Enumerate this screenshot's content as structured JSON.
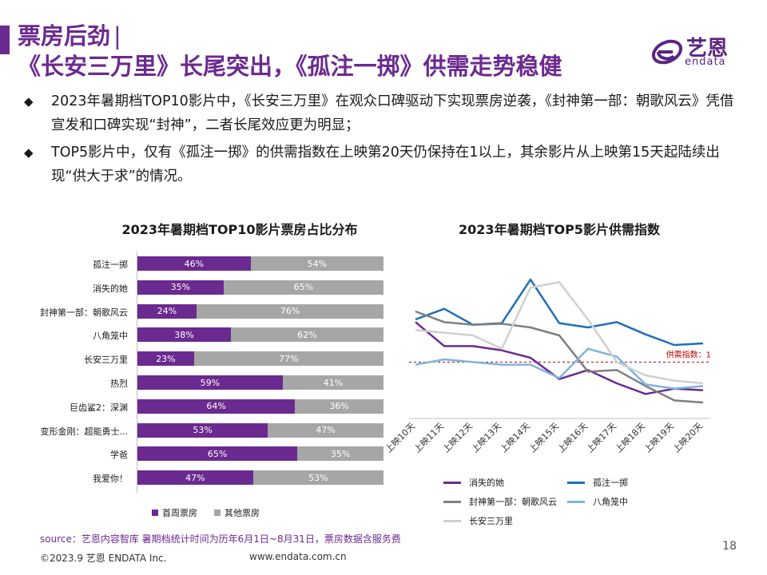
{
  "header": {
    "title_line1": "票房后劲",
    "title_sep": "|",
    "title_line2": "《长安三万里》长尾突出，《孤注一掷》供需走势稳健",
    "logo_cn": "艺恩",
    "logo_en": "endata"
  },
  "bullets": [
    "2023年暑期档TOP10影片中，《长安三万里》在观众口碑驱动下实现票房逆袭，《封神第一部：朝歌风云》凭借宣发和口碑实现“封神”，二者长尾效应更为明显；",
    "TOP5影片中，仅有《孤注一掷》的供需指数在上映第20天仍保持在1以上，其余影片从上映第15天起陆续出现“供大于求”的情况。"
  ],
  "bullet_icon": "◆",
  "chart_data": [
    {
      "type": "bar",
      "title": "2023年暑期档TOP10影片票房占比分布",
      "categories": [
        "孤注一掷",
        "消失的她",
        "封神第一部：朝歌风云",
        "八角笼中",
        "长安三万里",
        "热烈",
        "巨齿鲨2：深渊",
        "变形金刚：超能勇士...",
        "学爸",
        "我爱你！"
      ],
      "series": [
        {
          "name": "首周票房",
          "color": "#6b2a8f",
          "values": [
            46,
            35,
            24,
            38,
            23,
            59,
            64,
            53,
            65,
            47
          ]
        },
        {
          "name": "其他票房",
          "color": "#a6a6a6",
          "values": [
            54,
            65,
            76,
            62,
            77,
            41,
            36,
            47,
            35,
            53
          ]
        }
      ],
      "xlim": [
        0,
        100
      ]
    },
    {
      "type": "line",
      "title": "2023年暑期档TOP5影片供需指数",
      "categories": [
        "上映10天",
        "上映11天",
        "上映12天",
        "上映13天",
        "上映14天",
        "上映15天",
        "上映16天",
        "上映17天",
        "上映18天",
        "上映19天",
        "上映20天"
      ],
      "series": [
        {
          "name": "消失的她",
          "color": "#6b2a8f",
          "values": [
            1.75,
            1.3,
            1.3,
            1.22,
            1.08,
            0.68,
            0.85,
            0.6,
            0.4,
            0.5,
            0.47
          ]
        },
        {
          "name": "孤注一掷",
          "color": "#1f6fb5",
          "values": [
            1.8,
            2.0,
            1.7,
            1.73,
            2.55,
            1.73,
            1.65,
            1.75,
            1.52,
            1.32,
            1.35
          ]
        },
        {
          "name": "封神第一部：朝歌风云",
          "color": "#7f7f7f",
          "values": [
            1.95,
            1.75,
            1.7,
            1.72,
            1.65,
            1.5,
            0.82,
            0.85,
            0.55,
            0.28,
            0.24
          ]
        },
        {
          "name": "八角笼中",
          "color": "#7fb3e0",
          "values": [
            0.95,
            1.05,
            1.0,
            0.95,
            0.95,
            0.7,
            1.25,
            1.1,
            0.58,
            0.5,
            0.55
          ]
        },
        {
          "name": "长安三万里",
          "color": "#cfcfcf",
          "values": [
            1.6,
            1.55,
            1.5,
            1.25,
            2.4,
            2.5,
            1.8,
            1.0,
            0.75,
            0.65,
            0.6
          ]
        }
      ],
      "ylim": [
        0,
        3
      ],
      "annotation": {
        "label": "供需指数：1",
        "value": 1,
        "color": "#c00000"
      }
    }
  ],
  "footer": {
    "source": "source：艺恩内容智库     暑期档统计时间为历年6月1日~8月31日，票房数据含服务费",
    "copyright": "©2023.9 艺恩 ENDATA Inc.",
    "website": "www.endata.com.cn",
    "page": "18"
  }
}
